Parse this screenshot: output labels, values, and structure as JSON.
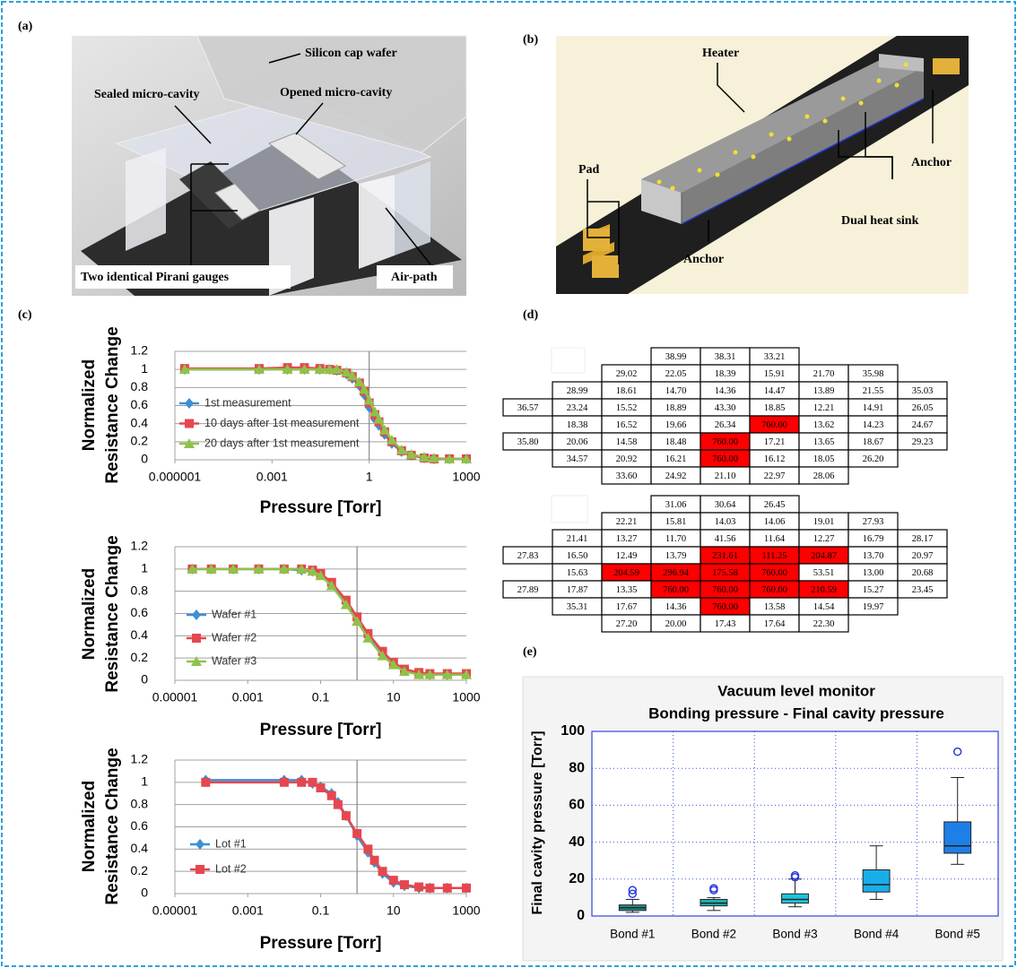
{
  "figure": {
    "panel_labels": [
      "(a)",
      "(b)",
      "(c)",
      "(d)",
      "(e)"
    ],
    "panel_a_labels": [
      "Silicon cap wafer",
      "Sealed micro-cavity",
      "Opened micro-cavity",
      "Two identical Pirani gauges",
      "Air-path"
    ],
    "panel_b_labels": [
      "Heater",
      "Pad",
      "Anchor",
      "Dual heat sink",
      "Anchor"
    ]
  },
  "tables": [
    {
      "highlight_color": "#ff0000",
      "highlighted": [
        [
          4,
          5
        ],
        [
          5,
          4
        ],
        [
          6,
          4
        ]
      ],
      "rows": [
        [
          null,
          null,
          null,
          "38.99",
          "38.31",
          "33.21",
          null,
          null,
          null
        ],
        [
          null,
          null,
          "29.02",
          "22.05",
          "18.39",
          "15.91",
          "21.70",
          "35.98",
          null
        ],
        [
          null,
          "28.99",
          "18.61",
          "14.70",
          "14.36",
          "14.47",
          "13.89",
          "21.55",
          "35.03"
        ],
        [
          "36.57",
          "23.24",
          "15.52",
          "18.89",
          "43.30",
          "18.85",
          "12.21",
          "14.91",
          "26.05"
        ],
        [
          null,
          "18.38",
          "16.52",
          "19.66",
          "26.34",
          "760.00",
          "13.62",
          "14.23",
          "24.67"
        ],
        [
          "35.80",
          "20.06",
          "14.58",
          "18.48",
          "760.00",
          "17.21",
          "13.65",
          "18.67",
          "29.23"
        ],
        [
          null,
          "34.57",
          "20.92",
          "16.21",
          "760.00",
          "16.12",
          "18.05",
          "26.20",
          null
        ],
        [
          null,
          null,
          "33.60",
          "24.92",
          "21.10",
          "22.97",
          "28.06",
          null,
          null
        ]
      ]
    },
    {
      "highlight_color": "#ff0000",
      "highlighted": [
        [
          3,
          4
        ],
        [
          3,
          5
        ],
        [
          3,
          6
        ],
        [
          4,
          2
        ],
        [
          4,
          3
        ],
        [
          4,
          4
        ],
        [
          4,
          5
        ],
        [
          5,
          3
        ],
        [
          5,
          4
        ],
        [
          5,
          5
        ],
        [
          5,
          6
        ],
        [
          6,
          4
        ]
      ],
      "rows": [
        [
          null,
          null,
          null,
          "31.06",
          "30.64",
          "26.45",
          null,
          null,
          null
        ],
        [
          null,
          null,
          "22.21",
          "15.81",
          "14.03",
          "14.06",
          "19.01",
          "27.93",
          null
        ],
        [
          null,
          "21.41",
          "13.27",
          "11.70",
          "41.56",
          "11.64",
          "12.27",
          "16.79",
          "28.17"
        ],
        [
          "27.83",
          "16.50",
          "12.49",
          "13.79",
          "231.61",
          "111.25",
          "204.87",
          "13.70",
          "20.97"
        ],
        [
          null,
          "15.63",
          "204.59",
          "296.94",
          "175.58",
          "760.00",
          "53.51",
          "13.00",
          "20.68"
        ],
        [
          "27.89",
          "17.87",
          "13.35",
          "760.00",
          "760.00",
          "760.00",
          "210.59",
          "15.27",
          "23.45"
        ],
        [
          null,
          "35.31",
          "17.67",
          "14.36",
          "760.00",
          "13.58",
          "14.54",
          "19.97",
          null
        ],
        [
          null,
          null,
          "27.20",
          "20.00",
          "17.43",
          "17.64",
          "22.30",
          null,
          null
        ]
      ]
    }
  ],
  "chart_data": [
    {
      "type": "line",
      "x_scale": "log",
      "xlabel": "Pressure [Torr]",
      "ylabel": [
        "Normalized",
        "Resistance Change"
      ],
      "xlim": [
        1e-06,
        1000
      ],
      "xticks": [
        1e-06,
        0.001,
        1,
        1000
      ],
      "ylim": [
        0,
        1.2
      ],
      "yticks": [
        0,
        0.2,
        0.4,
        0.6,
        0.8,
        1,
        1.2
      ],
      "grid": true,
      "reference_x": 1,
      "x": [
        2e-06,
        0.0004,
        0.003,
        0.01,
        0.03,
        0.06,
        0.1,
        0.2,
        0.3,
        0.5,
        0.7,
        1,
        1.5,
        2,
        3,
        5,
        10,
        20,
        50,
        100,
        300,
        1000
      ],
      "series": [
        {
          "name": "1st measurement",
          "color": "#3d8fd6",
          "marker": "diamond",
          "values": [
            1,
            1,
            1,
            1,
            1,
            1,
            0.99,
            0.95,
            0.9,
            0.82,
            0.72,
            0.58,
            0.45,
            0.38,
            0.28,
            0.18,
            0.09,
            0.05,
            0.02,
            0.01,
            0.01,
            0.01
          ]
        },
        {
          "name": "10 days after 1st measurement",
          "color": "#e5474f",
          "marker": "square",
          "values": [
            1.01,
            1.01,
            1.02,
            1.02,
            1.01,
            1,
            0.99,
            0.96,
            0.92,
            0.85,
            0.76,
            0.63,
            0.5,
            0.42,
            0.31,
            0.2,
            0.1,
            0.05,
            0.02,
            0.01,
            0.01,
            0.01
          ]
        },
        {
          "name": "20 days after 1st measurement",
          "color": "#8fc24a",
          "marker": "triangle",
          "values": [
            1,
            1,
            1,
            1,
            1,
            1,
            1,
            0.97,
            0.93,
            0.86,
            0.78,
            0.66,
            0.53,
            0.45,
            0.33,
            0.22,
            0.11,
            0.06,
            0.03,
            0.02,
            0.01,
            0.01
          ]
        }
      ]
    },
    {
      "type": "line",
      "x_scale": "log",
      "xlabel": "Pressure [Torr]",
      "ylabel": [
        "Normalized",
        "Resistance Change"
      ],
      "xlim": [
        1e-05,
        1000
      ],
      "xticks": [
        1e-05,
        0.001,
        0.1,
        10,
        1000
      ],
      "ylim": [
        0,
        1.2
      ],
      "yticks": [
        0,
        0.2,
        0.4,
        0.6,
        0.8,
        1,
        1.2
      ],
      "grid": true,
      "reference_x": 1,
      "x": [
        3e-05,
        0.0001,
        0.0004,
        0.002,
        0.01,
        0.03,
        0.06,
        0.1,
        0.2,
        0.5,
        1,
        2,
        5,
        10,
        20,
        50,
        100,
        300,
        1000
      ],
      "series": [
        {
          "name": "Wafer #1",
          "color": "#3d8fd6",
          "marker": "diamond",
          "values": [
            1,
            1,
            1,
            1,
            1,
            0.99,
            0.98,
            0.95,
            0.86,
            0.7,
            0.55,
            0.4,
            0.24,
            0.15,
            0.09,
            0.06,
            0.05,
            0.05,
            0.05
          ]
        },
        {
          "name": "Wafer #2",
          "color": "#e5474f",
          "marker": "square",
          "values": [
            1,
            1,
            1,
            1,
            1,
            1,
            0.99,
            0.96,
            0.88,
            0.72,
            0.57,
            0.42,
            0.26,
            0.16,
            0.1,
            0.07,
            0.06,
            0.06,
            0.06
          ]
        },
        {
          "name": "Wafer #3",
          "color": "#8fc24a",
          "marker": "triangle",
          "values": [
            1,
            1,
            1,
            1,
            1,
            1,
            0.98,
            0.94,
            0.85,
            0.68,
            0.53,
            0.38,
            0.22,
            0.14,
            0.08,
            0.05,
            0.05,
            0.05,
            0.05
          ]
        }
      ]
    },
    {
      "type": "line",
      "x_scale": "log",
      "xlabel": "Pressure [Torr]",
      "ylabel": [
        "Normalized",
        "Resistance Change"
      ],
      "xlim": [
        1e-05,
        1000
      ],
      "xticks": [
        1e-05,
        0.001,
        0.1,
        10,
        1000
      ],
      "ylim": [
        0,
        1.2
      ],
      "yticks": [
        0,
        0.2,
        0.4,
        0.6,
        0.8,
        1,
        1.2
      ],
      "grid": true,
      "reference_x": 1,
      "x": [
        7e-05,
        0.01,
        0.03,
        0.06,
        0.1,
        0.2,
        0.3,
        0.5,
        1,
        2,
        3,
        5,
        10,
        20,
        50,
        100,
        300,
        1000
      ],
      "series": [
        {
          "name": "Lot #1",
          "color": "#3d8fd6",
          "marker": "diamond",
          "values": [
            1.02,
            1.02,
            1.02,
            0.99,
            0.96,
            0.9,
            0.82,
            0.7,
            0.52,
            0.37,
            0.28,
            0.18,
            0.1,
            0.07,
            0.05,
            0.05,
            0.05,
            0.05
          ]
        },
        {
          "name": "Lot #2",
          "color": "#e5474f",
          "marker": "square",
          "values": [
            1,
            1,
            1,
            1,
            0.95,
            0.88,
            0.8,
            0.7,
            0.54,
            0.4,
            0.3,
            0.2,
            0.12,
            0.08,
            0.06,
            0.05,
            0.05,
            0.05
          ]
        }
      ]
    },
    {
      "type": "box",
      "title": "Vacuum level monitor",
      "subtitle": "Bonding pressure - Final cavity pressure",
      "ylabel": "Final cavity pressure [Torr]",
      "ylim": [
        0,
        100
      ],
      "yticks": [
        0,
        20,
        40,
        60,
        80,
        100
      ],
      "grid": true,
      "categories": [
        "Bond #1",
        "Bond #2",
        "Bond #3",
        "Bond #4",
        "Bond #5"
      ],
      "outlier_color": "#2a3be0",
      "boxes": [
        {
          "color": "#1f8f8a",
          "min": 2,
          "q1": 3,
          "median": 4.5,
          "q3": 6,
          "max": 9,
          "outliers": [
            14,
            12
          ]
        },
        {
          "color": "#1cb3b0",
          "min": 3,
          "q1": 5.5,
          "median": 7,
          "q3": 9,
          "max": 10,
          "outliers": [
            15,
            14
          ]
        },
        {
          "color": "#1cc6de",
          "min": 5,
          "q1": 7,
          "median": 9,
          "q3": 12,
          "max": 20,
          "outliers": [
            22,
            21
          ]
        },
        {
          "color": "#18aeea",
          "min": 9,
          "q1": 13,
          "median": 17,
          "q3": 25,
          "max": 38,
          "outliers": []
        },
        {
          "color": "#1e7fe6",
          "min": 28,
          "q1": 34,
          "median": 38,
          "q3": 51,
          "max": 75,
          "outliers": [
            89
          ]
        }
      ]
    }
  ]
}
